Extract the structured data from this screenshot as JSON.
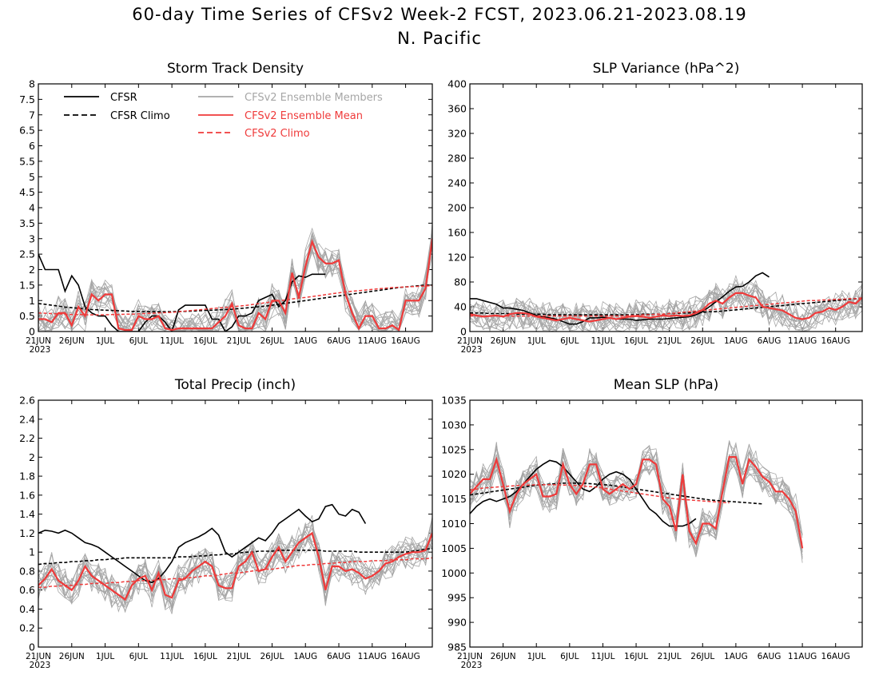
{
  "title": "60-day Time Series of CFSv2 Week-2 FCST, 2023.06.21-2023.08.19",
  "subtitle": "N. Pacific",
  "colors": {
    "cfsr": "#000000",
    "members": "#a6a6a6",
    "mean": "#ef3a3a",
    "cfsv2_climo": "#ef3a3a"
  },
  "x_ticks": [
    "21JUN",
    "26JUN",
    "1JUL",
    "6JUL",
    "11JUL",
    "16JUL",
    "21JUL",
    "26JUL",
    "1AUG",
    "6AUG",
    "11AUG",
    "16AUG"
  ],
  "x_year": "2023",
  "legend": {
    "cfsr": "CFSR",
    "cfsr_climo": "CFSR Climo",
    "members": "CFSv2 Ensemble Members",
    "mean": "CFSv2 Ensemble Mean",
    "cfsv2_climo": "CFSv2 Climo"
  },
  "chart_data": [
    {
      "type": "line",
      "title": "Storm Track Density",
      "ylim": [
        0,
        8
      ],
      "yticks": [
        "0",
        "0.5",
        "1",
        "1.5",
        "2",
        "2.5",
        "3",
        "3.5",
        "4",
        "4.5",
        "5",
        "5.5",
        "6",
        "6.5",
        "7",
        "7.5",
        "8"
      ],
      "x": "days 0-59 (21JUN-19AUG 2023)",
      "series": [
        {
          "name": "CFSR",
          "values": [
            2.5,
            2.0,
            2.0,
            2.0,
            1.3,
            1.8,
            1.5,
            0.8,
            0.6,
            0.5,
            0.5,
            0.2,
            0,
            0,
            0,
            0,
            0.3,
            0.5,
            0.5,
            0.3,
            0,
            0.7,
            0.85,
            0.85,
            0.85,
            0.85,
            0.4,
            0.4,
            0,
            0.15,
            0.5,
            0.5,
            0.6,
            1.0,
            1.1,
            1.2,
            0.8,
            1.0,
            1.6,
            1.8,
            1.75,
            1.85,
            1.85,
            1.85
          ]
        },
        {
          "name": "CFSR Climo",
          "values": [
            0.9,
            0.88,
            0.85,
            0.82,
            0.79,
            0.77,
            0.75,
            0.73,
            0.71,
            0.7,
            0.69,
            0.68,
            0.67,
            0.66,
            0.65,
            0.65,
            0.64,
            0.64,
            0.64,
            0.64,
            0.64,
            0.65,
            0.65,
            0.66,
            0.67,
            0.68,
            0.69,
            0.7,
            0.71,
            0.72,
            0.74,
            0.76,
            0.78,
            0.8,
            0.82,
            0.85,
            0.88,
            0.91,
            0.94,
            0.97,
            1.0,
            1.03,
            1.06,
            1.09,
            1.12,
            1.15,
            1.18,
            1.21,
            1.24,
            1.27,
            1.3,
            1.33,
            1.36,
            1.39,
            1.42,
            1.44,
            1.46,
            1.48,
            1.5,
            1.5
          ]
        },
        {
          "name": "CFSv2 Ensemble Mean",
          "values": [
            0.4,
            0.4,
            0.3,
            0.6,
            0.6,
            0.2,
            0.8,
            0.5,
            1.2,
            1.0,
            1.2,
            1.2,
            0.1,
            0.05,
            0.05,
            0.5,
            0.4,
            0.4,
            0.5,
            0.1,
            0.05,
            0.1,
            0.1,
            0.1,
            0.1,
            0.1,
            0.1,
            0.3,
            0.5,
            0.9,
            0.2,
            0.1,
            0.1,
            0.6,
            0.4,
            1.0,
            1.0,
            0.6,
            1.9,
            1.1,
            2.1,
            2.9,
            2.4,
            2.2,
            2.2,
            2.3,
            1.2,
            0.6,
            0.1,
            0.5,
            0.5,
            0.1,
            0.1,
            0.2,
            0.05,
            1.0,
            1.0,
            1.0,
            1.4,
            3.0
          ]
        },
        {
          "name": "CFSv2 Climo",
          "values": [
            0.6,
            0.59,
            0.58,
            0.57,
            0.56,
            0.55,
            0.55,
            0.54,
            0.54,
            0.54,
            0.54,
            0.55,
            0.55,
            0.56,
            0.56,
            0.57,
            0.58,
            0.59,
            0.6,
            0.61,
            0.62,
            0.64,
            0.66,
            0.68,
            0.7,
            0.72,
            0.74,
            0.76,
            0.78,
            0.8,
            0.82,
            0.84,
            0.87,
            0.9,
            0.93,
            0.96,
            0.99,
            1.02,
            1.05,
            1.08,
            1.1,
            1.13,
            1.16,
            1.19,
            1.22,
            1.25,
            1.28,
            1.3,
            1.32,
            1.34,
            1.36,
            1.38,
            1.4,
            1.42,
            1.43,
            1.44,
            1.45,
            1.46,
            1.47,
            1.48
          ]
        }
      ]
    },
    {
      "type": "line",
      "title": "SLP Variance (hPa^2)",
      "ylim": [
        0,
        400
      ],
      "yticks": [
        "0",
        "40",
        "80",
        "120",
        "160",
        "200",
        "240",
        "280",
        "320",
        "360",
        "400"
      ],
      "x": "days 0-59 (21JUN-19AUG 2023)",
      "series": [
        {
          "name": "CFSR",
          "values": [
            53,
            53,
            50,
            47,
            44,
            38,
            38,
            36,
            34,
            30,
            26,
            24,
            22,
            20,
            16,
            12,
            12,
            16,
            22,
            22,
            23,
            22,
            20,
            20,
            20,
            18,
            19,
            20,
            20,
            20,
            21,
            22,
            23,
            24,
            27,
            32,
            40,
            48,
            56,
            65,
            72,
            73,
            80,
            90,
            95,
            88
          ]
        },
        {
          "name": "CFSR Climo",
          "values": [
            30,
            30,
            30,
            29,
            29,
            29,
            29,
            28,
            28,
            28,
            28,
            28,
            27,
            27,
            27,
            27,
            27,
            27,
            27,
            27,
            27,
            27,
            27,
            27,
            27,
            27,
            28,
            28,
            28,
            28,
            29,
            29,
            30,
            30,
            31,
            31,
            32,
            32,
            33,
            34,
            35,
            36,
            37,
            38,
            39,
            40,
            41,
            42,
            43,
            44,
            45,
            46,
            47,
            48,
            49,
            50,
            51,
            52,
            53,
            54
          ]
        },
        {
          "name": "CFSv2 Ensemble Mean",
          "values": [
            28,
            26,
            24,
            25,
            26,
            24,
            28,
            30,
            30,
            28,
            24,
            22,
            20,
            18,
            20,
            22,
            20,
            18,
            16,
            18,
            20,
            22,
            20,
            22,
            24,
            25,
            24,
            22,
            24,
            26,
            25,
            26,
            25,
            26,
            30,
            35,
            45,
            50,
            45,
            55,
            62,
            62,
            58,
            55,
            40,
            38,
            36,
            34,
            28,
            22,
            20,
            22,
            30,
            32,
            38,
            35,
            40,
            48,
            45,
            55
          ]
        },
        {
          "name": "CFSv2 Climo",
          "values": [
            25,
            25,
            25,
            25,
            25,
            25,
            25,
            25,
            25,
            25,
            25,
            25,
            25,
            25,
            25,
            25,
            25,
            25,
            25,
            25,
            25,
            25,
            25,
            25,
            26,
            26,
            27,
            27,
            28,
            28,
            29,
            30,
            31,
            32,
            33,
            34,
            35,
            36,
            37,
            38,
            39,
            40,
            41,
            42,
            43,
            44,
            45,
            46,
            47,
            48,
            49,
            50,
            50,
            51,
            51,
            52,
            52,
            53,
            53,
            54
          ]
        }
      ]
    },
    {
      "type": "line",
      "title": "Total Precip (inch)",
      "ylim": [
        0,
        2.6
      ],
      "yticks": [
        "0",
        "0.2",
        "0.4",
        "0.6",
        "0.8",
        "1",
        "1.2",
        "1.4",
        "1.6",
        "1.8",
        "2",
        "2.2",
        "2.4",
        "2.6"
      ],
      "x": "days 0-59 (21JUN-19AUG 2023)",
      "series": [
        {
          "name": "CFSR",
          "values": [
            1.2,
            1.23,
            1.22,
            1.2,
            1.23,
            1.2,
            1.15,
            1.1,
            1.08,
            1.05,
            1.0,
            0.95,
            0.9,
            0.85,
            0.8,
            0.75,
            0.7,
            0.68,
            0.72,
            0.8,
            0.9,
            1.05,
            1.1,
            1.13,
            1.16,
            1.2,
            1.25,
            1.18,
            1.0,
            0.95,
            1.0,
            1.05,
            1.1,
            1.15,
            1.12,
            1.2,
            1.3,
            1.35,
            1.4,
            1.45,
            1.38,
            1.32,
            1.35,
            1.48,
            1.5,
            1.4,
            1.38,
            1.45,
            1.42,
            1.3
          ]
        },
        {
          "name": "CFSR Climo",
          "values": [
            0.87,
            0.88,
            0.88,
            0.89,
            0.89,
            0.9,
            0.9,
            0.91,
            0.91,
            0.92,
            0.92,
            0.93,
            0.93,
            0.94,
            0.94,
            0.94,
            0.94,
            0.94,
            0.94,
            0.94,
            0.94,
            0.95,
            0.95,
            0.95,
            0.96,
            0.96,
            0.97,
            0.97,
            0.98,
            0.98,
            0.99,
            1.0,
            1.0,
            1.01,
            1.01,
            1.01,
            1.02,
            1.02,
            1.02,
            1.02,
            1.02,
            1.02,
            1.02,
            1.01,
            1.01,
            1.01,
            1.01,
            1.01,
            1.0,
            1.0,
            1.0,
            1.0,
            1.0,
            1.0,
            1.0,
            1.0,
            1.01,
            1.02,
            1.03,
            1.04
          ]
        },
        {
          "name": "CFSv2 Ensemble Mean",
          "values": [
            0.65,
            0.72,
            0.82,
            0.7,
            0.65,
            0.6,
            0.7,
            0.85,
            0.75,
            0.7,
            0.65,
            0.6,
            0.55,
            0.5,
            0.65,
            0.72,
            0.75,
            0.6,
            0.78,
            0.55,
            0.52,
            0.7,
            0.72,
            0.8,
            0.85,
            0.9,
            0.85,
            0.65,
            0.62,
            0.62,
            0.85,
            0.9,
            1.0,
            0.8,
            0.82,
            0.95,
            1.05,
            0.9,
            1.0,
            1.1,
            1.15,
            1.2,
            0.95,
            0.6,
            0.85,
            0.85,
            0.8,
            0.82,
            0.78,
            0.72,
            0.75,
            0.8,
            0.88,
            0.9,
            0.95,
            0.98,
            1.0,
            1.0,
            1.02,
            1.2
          ]
        },
        {
          "name": "CFSv2 Climo",
          "values": [
            0.63,
            0.63,
            0.64,
            0.64,
            0.65,
            0.65,
            0.66,
            0.66,
            0.67,
            0.67,
            0.67,
            0.68,
            0.68,
            0.69,
            0.69,
            0.7,
            0.7,
            0.7,
            0.71,
            0.71,
            0.72,
            0.72,
            0.73,
            0.73,
            0.74,
            0.75,
            0.75,
            0.76,
            0.77,
            0.78,
            0.78,
            0.79,
            0.8,
            0.81,
            0.82,
            0.82,
            0.83,
            0.84,
            0.85,
            0.86,
            0.86,
            0.87,
            0.87,
            0.88,
            0.88,
            0.89,
            0.89,
            0.9,
            0.9,
            0.9,
            0.91,
            0.91,
            0.91,
            0.92,
            0.92,
            0.92,
            0.93,
            0.93,
            0.93,
            0.94
          ]
        }
      ]
    },
    {
      "type": "line",
      "title": "Mean SLP (hPa)",
      "ylim": [
        985,
        1035
      ],
      "yticks": [
        "985",
        "990",
        "995",
        "1000",
        "1005",
        "1010",
        "1015",
        "1020",
        "1025",
        "1030",
        "1035"
      ],
      "x": "days 0-59 (21JUN-19AUG 2023)",
      "series": [
        {
          "name": "CFSR",
          "values": [
            1012,
            1013.5,
            1014.5,
            1015,
            1014.5,
            1015,
            1015.5,
            1016.5,
            1018,
            1019.5,
            1021,
            1022,
            1022.8,
            1022.5,
            1021.5,
            1020,
            1018.5,
            1017,
            1016.5,
            1017.5,
            1019,
            1020,
            1020.5,
            1020,
            1019,
            1017,
            1015,
            1013,
            1012,
            1010.5,
            1009.5,
            1009.5,
            1009.5,
            1010,
            1011
          ]
        },
        {
          "name": "CFSR Climo",
          "values": [
            1015.8,
            1016,
            1016.2,
            1016.4,
            1016.6,
            1016.8,
            1017,
            1017.2,
            1017.4,
            1017.6,
            1017.8,
            1017.9,
            1018,
            1018.1,
            1018.2,
            1018.2,
            1018.2,
            1018.2,
            1018.1,
            1018,
            1017.9,
            1017.8,
            1017.6,
            1017.4,
            1017.2,
            1017,
            1016.8,
            1016.6,
            1016.4,
            1016.2,
            1016,
            1015.8,
            1015.6,
            1015.4,
            1015.2,
            1015,
            1014.8,
            1014.7,
            1014.6,
            1014.5,
            1014.4,
            1014.3,
            1014.2,
            1014.1,
            1014
          ]
        },
        {
          "name": "CFSv2 Ensemble Mean",
          "values": [
            1016,
            1017.5,
            1019,
            1019,
            1023,
            1018,
            1012.5,
            1016,
            1018,
            1019,
            1020,
            1015.5,
            1015.5,
            1016,
            1022,
            1018,
            1016,
            1018,
            1022,
            1022,
            1017,
            1016,
            1017,
            1018,
            1017,
            1018,
            1023,
            1023,
            1022,
            1015,
            1013.5,
            1008.5,
            1020,
            1008.5,
            1006,
            1010,
            1010,
            1009,
            1016.5,
            1023.5,
            1023.5,
            1018,
            1023,
            1021.5,
            1019.5,
            1018.5,
            1016.5,
            1016.5,
            1015,
            1012.5,
            1005
          ]
        },
        {
          "name": "CFSv2 Climo",
          "values": [
            1016.8,
            1017,
            1017.2,
            1017.3,
            1017.4,
            1017.5,
            1017.6,
            1017.7,
            1017.8,
            1017.8,
            1017.9,
            1017.9,
            1017.9,
            1017.9,
            1017.8,
            1017.8,
            1017.7,
            1017.6,
            1017.5,
            1017.4,
            1017.2,
            1017,
            1016.8,
            1016.6,
            1016.4,
            1016.2,
            1016,
            1015.8,
            1015.6,
            1015.4,
            1015.2,
            1015,
            1014.9,
            1014.8,
            1014.7,
            1014.6,
            1014.5,
            1014.4,
            1014.3,
            1014.2
          ]
        }
      ]
    }
  ]
}
